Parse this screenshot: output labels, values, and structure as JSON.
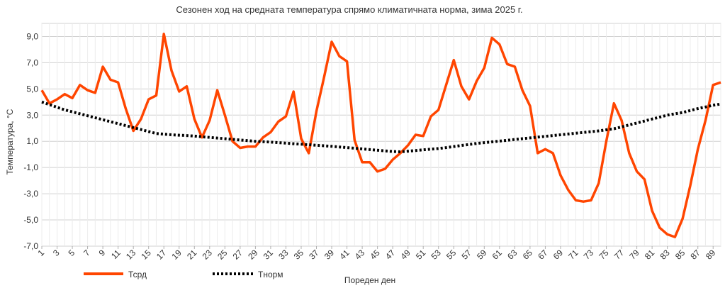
{
  "chart_data": {
    "type": "line",
    "title": "Сезонен ход на средната температура спрямо климатичната норма, зима 2025 г.",
    "xlabel": "Пореден ден",
    "ylabel": "Температура, °C",
    "ylim": [
      -7.0,
      10.0
    ],
    "y_ticks": [
      "9,0",
      "7,0",
      "5,0",
      "3,0",
      "1,0",
      "-1,0",
      "-3,0",
      "-5,0",
      "-7,0"
    ],
    "x_ticks": [
      "1",
      "3",
      "5",
      "7",
      "9",
      "11",
      "13",
      "15",
      "17",
      "19",
      "21",
      "23",
      "25",
      "27",
      "29",
      "31",
      "33",
      "35",
      "37",
      "39",
      "41",
      "43",
      "45",
      "47",
      "49",
      "51",
      "53",
      "55",
      "57",
      "59",
      "61",
      "63",
      "65",
      "67",
      "69",
      "71",
      "73",
      "75",
      "77",
      "79",
      "81",
      "83",
      "85",
      "87",
      "89"
    ],
    "grid": true,
    "legend_position": "bottom-left",
    "x": [
      1,
      2,
      3,
      4,
      5,
      6,
      7,
      8,
      9,
      10,
      11,
      12,
      13,
      14,
      15,
      16,
      17,
      18,
      19,
      20,
      21,
      22,
      23,
      24,
      25,
      26,
      27,
      28,
      29,
      30,
      31,
      32,
      33,
      34,
      35,
      36,
      37,
      38,
      39,
      40,
      41,
      42,
      43,
      44,
      45,
      46,
      47,
      48,
      49,
      50,
      51,
      52,
      53,
      54,
      55,
      56,
      57,
      58,
      59,
      60,
      61,
      62,
      63,
      64,
      65,
      66,
      67,
      68,
      69,
      70,
      71,
      72,
      73,
      74,
      75,
      76,
      77,
      78,
      79,
      80,
      81,
      82,
      83,
      84,
      85,
      86,
      87,
      88,
      89,
      90
    ],
    "series": [
      {
        "name": "Тсрд",
        "color": "#ff4500",
        "style": "solid",
        "values": [
          4.9,
          3.9,
          4.2,
          4.6,
          4.3,
          5.3,
          4.9,
          4.7,
          6.7,
          5.7,
          5.5,
          3.5,
          1.8,
          2.7,
          4.2,
          4.5,
          9.2,
          6.4,
          4.8,
          5.2,
          2.7,
          1.3,
          2.6,
          4.9,
          3.0,
          1.0,
          0.5,
          0.6,
          0.6,
          1.3,
          1.7,
          2.5,
          2.9,
          4.8,
          1.2,
          0.1,
          3.3,
          5.9,
          8.6,
          7.5,
          7.1,
          1.1,
          -0.6,
          -0.6,
          -1.3,
          -1.1,
          -0.4,
          0.1,
          0.7,
          1.5,
          1.4,
          2.9,
          3.4,
          5.3,
          7.2,
          5.2,
          4.2,
          5.6,
          6.6,
          8.9,
          8.4,
          6.9,
          6.7,
          4.9,
          3.7,
          0.1,
          0.4,
          0.1,
          -1.6,
          -2.7,
          -3.5,
          -3.6,
          -3.5,
          -2.2,
          1.0,
          3.9,
          2.6,
          0.1,
          -1.3,
          -1.9,
          -4.3,
          -5.6,
          -6.1,
          -6.3,
          -4.9,
          -2.4,
          0.4,
          2.6,
          5.3,
          5.5
        ]
      },
      {
        "name": "Тнорм",
        "color": "#000000",
        "style": "dotted",
        "values": [
          4.0,
          3.8,
          3.6,
          3.4,
          3.25,
          3.1,
          2.95,
          2.8,
          2.65,
          2.5,
          2.35,
          2.2,
          2.05,
          1.9,
          1.75,
          1.6,
          1.55,
          1.5,
          1.47,
          1.44,
          1.4,
          1.35,
          1.3,
          1.25,
          1.2,
          1.15,
          1.1,
          1.05,
          1.0,
          0.97,
          0.94,
          0.9,
          0.86,
          0.82,
          0.78,
          0.74,
          0.7,
          0.66,
          0.62,
          0.57,
          0.52,
          0.47,
          0.42,
          0.37,
          0.32,
          0.27,
          0.22,
          0.2,
          0.25,
          0.3,
          0.35,
          0.4,
          0.45,
          0.52,
          0.6,
          0.68,
          0.76,
          0.84,
          0.9,
          0.96,
          1.02,
          1.08,
          1.14,
          1.2,
          1.26,
          1.32,
          1.38,
          1.44,
          1.5,
          1.56,
          1.62,
          1.68,
          1.74,
          1.8,
          1.88,
          1.96,
          2.1,
          2.25,
          2.4,
          2.55,
          2.7,
          2.85,
          3.0,
          3.1,
          3.2,
          3.35,
          3.5,
          3.62,
          3.75,
          3.85
        ]
      }
    ]
  }
}
